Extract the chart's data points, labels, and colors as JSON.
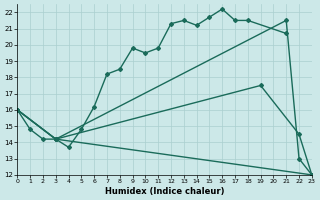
{
  "xlabel": "Humidex (Indice chaleur)",
  "xlim": [
    0,
    23
  ],
  "ylim": [
    12,
    22.5
  ],
  "yticks": [
    12,
    13,
    14,
    15,
    16,
    17,
    18,
    19,
    20,
    21,
    22
  ],
  "xticks": [
    0,
    1,
    2,
    3,
    4,
    5,
    6,
    7,
    8,
    9,
    10,
    11,
    12,
    13,
    14,
    15,
    16,
    17,
    18,
    19,
    20,
    21,
    22,
    23
  ],
  "bg_color": "#cce8e8",
  "grid_color": "#aacfcf",
  "line_color": "#1a6b5a",
  "line_width": 1.0,
  "marker": "D",
  "marker_size": 2.0,
  "lines": [
    {
      "x": [
        0,
        1,
        2,
        3,
        4,
        5,
        6,
        7,
        8,
        9,
        10,
        11,
        12,
        13,
        14,
        15,
        16,
        17,
        18,
        21
      ],
      "y": [
        16.0,
        14.8,
        14.2,
        14.2,
        13.7,
        14.8,
        16.2,
        18.2,
        18.5,
        19.8,
        19.5,
        19.8,
        21.3,
        21.5,
        21.2,
        21.7,
        22.2,
        21.5,
        21.5,
        20.7
      ]
    },
    {
      "x": [
        0,
        3,
        21,
        22,
        23
      ],
      "y": [
        16.0,
        14.2,
        21.5,
        13.0,
        12.0
      ]
    },
    {
      "x": [
        0,
        3,
        19,
        22,
        23
      ],
      "y": [
        16.0,
        14.2,
        17.5,
        14.5,
        12.0
      ]
    },
    {
      "x": [
        0,
        3,
        23
      ],
      "y": [
        16.0,
        14.2,
        12.0
      ]
    }
  ]
}
